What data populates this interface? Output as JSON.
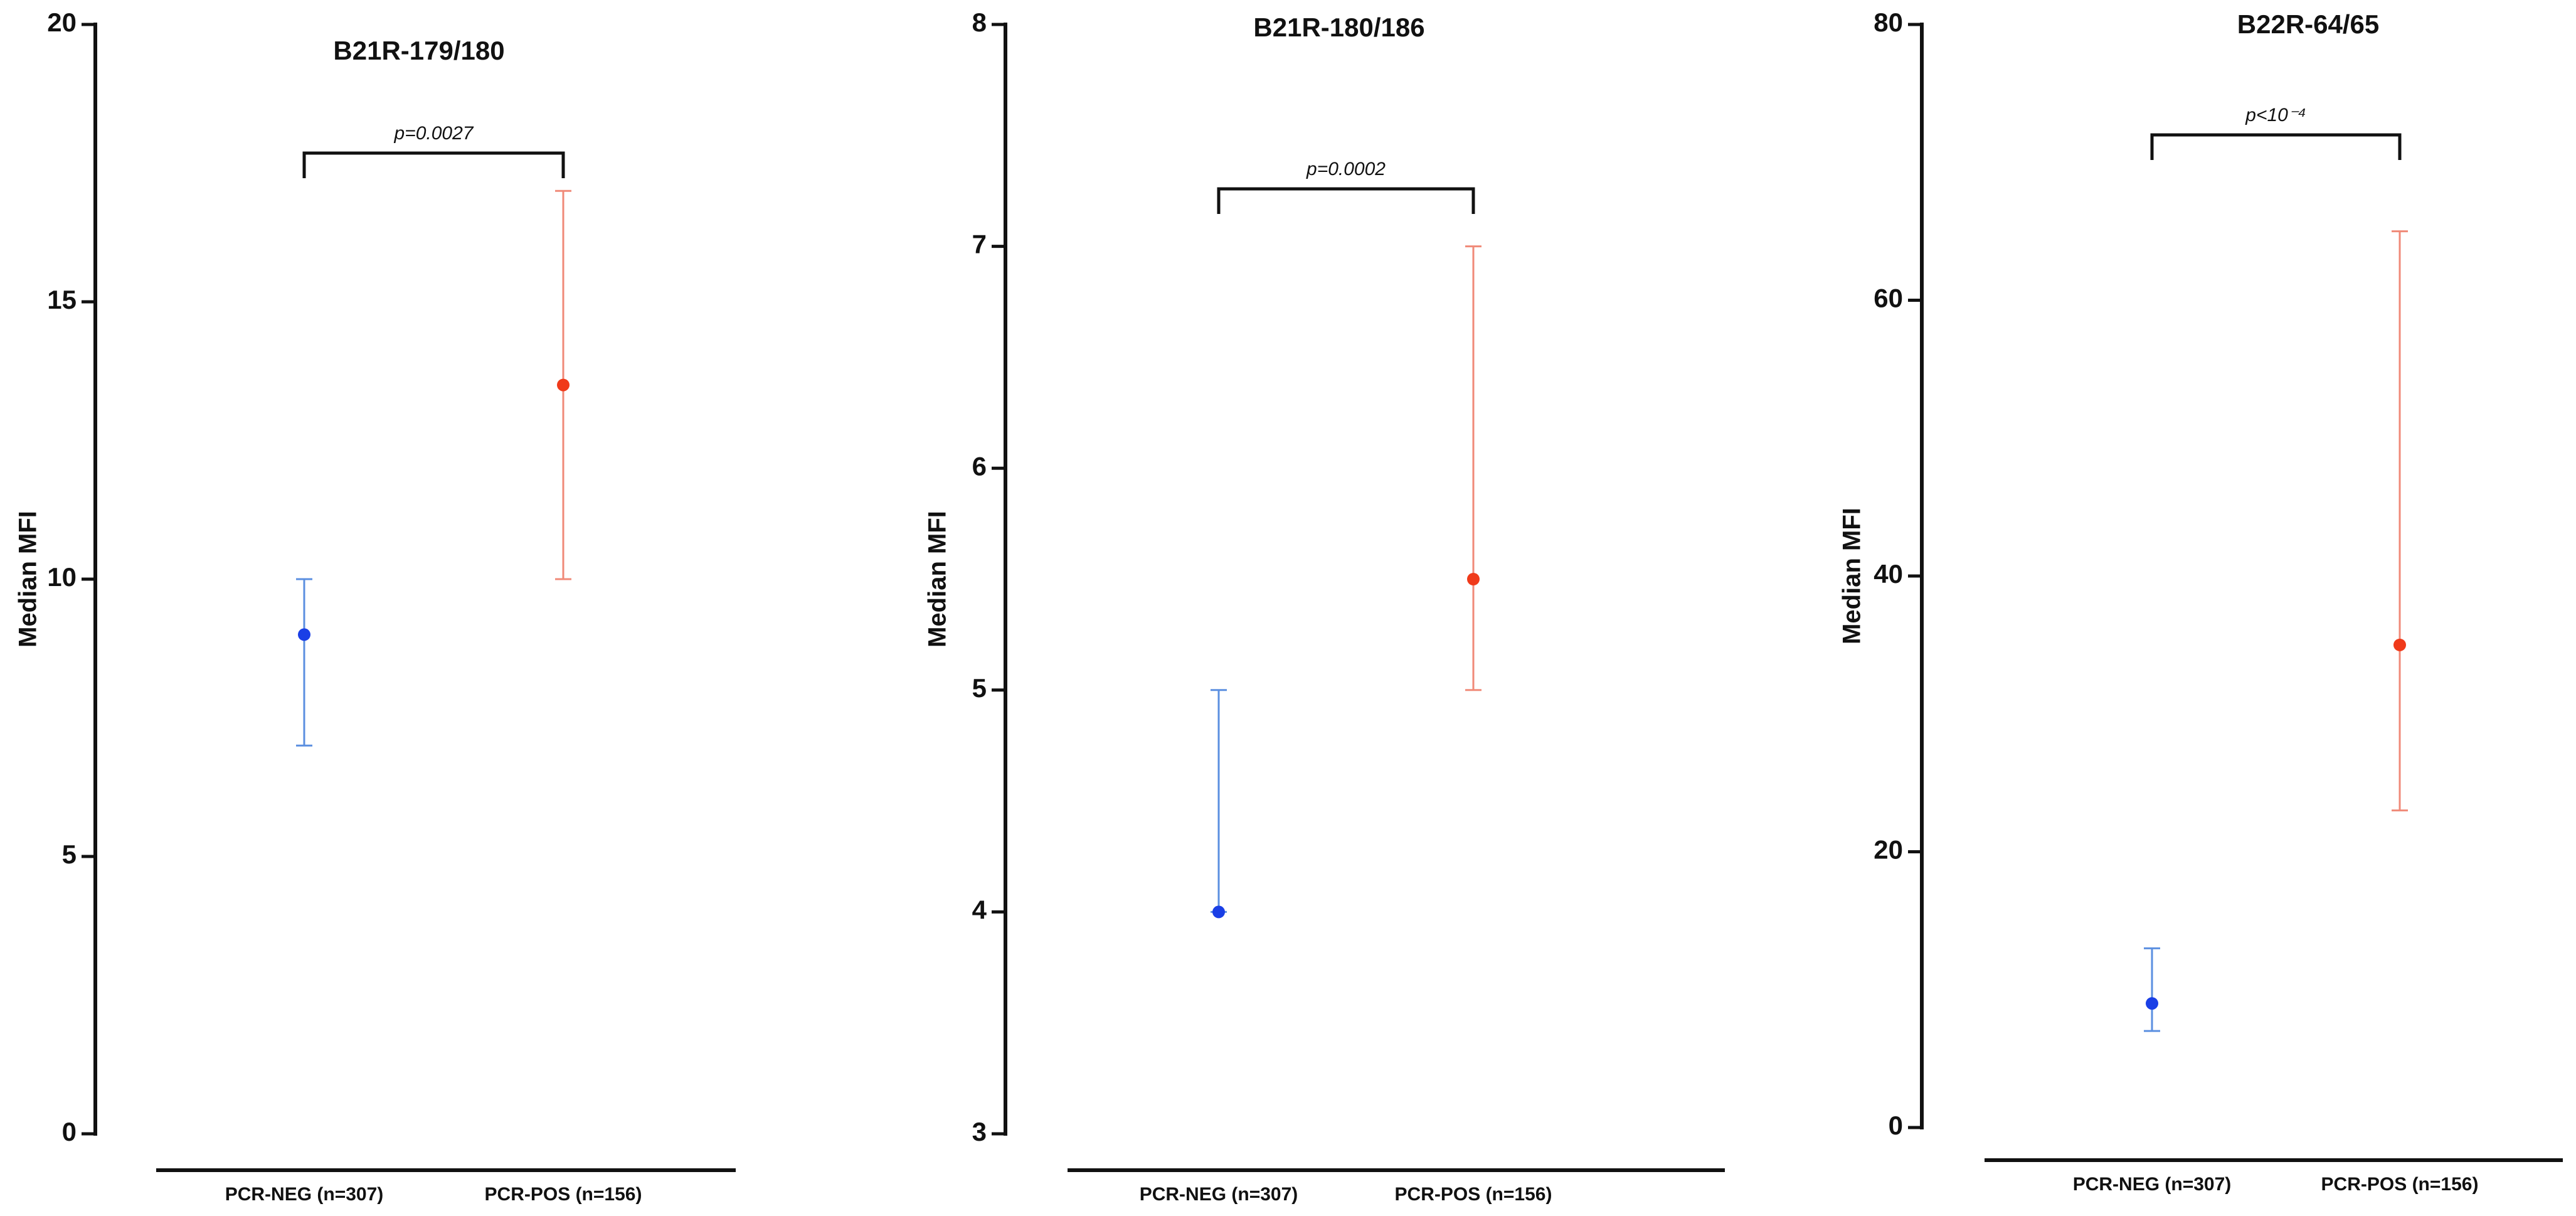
{
  "chart_data": [
    {
      "type": "errorpoint",
      "title": "B21R-179/180",
      "y_label": "Median MFI",
      "categories": [
        "PCR-NEG (n=307)",
        "PCR-POS (n=156)"
      ],
      "values": [
        9,
        13.5
      ],
      "lower": [
        7,
        10
      ],
      "upper": [
        10,
        17
      ],
      "colors": [
        "#1a3fe6",
        "#f03a1a"
      ],
      "error_colors": [
        "#5b8fe0",
        "#f08a78"
      ],
      "ylim": [
        0,
        20
      ],
      "yticks": [
        0,
        5,
        10,
        15,
        20
      ],
      "annotation": "p=0.0027"
    },
    {
      "type": "errorpoint",
      "title": "B21R-180/186",
      "y_label": "Median MFI",
      "categories": [
        "PCR-NEG (n=307)",
        "PCR-POS (n=156)"
      ],
      "values": [
        4,
        5.5
      ],
      "lower": [
        4,
        5
      ],
      "upper": [
        5,
        7
      ],
      "colors": [
        "#1a3fe6",
        "#f03a1a"
      ],
      "error_colors": [
        "#5b8fe0",
        "#f08a78"
      ],
      "ylim": [
        3,
        8
      ],
      "yticks": [
        3,
        4,
        5,
        6,
        7,
        8
      ],
      "annotation": "p=0.0002"
    },
    {
      "type": "errorpoint",
      "title": "B22R-64/65",
      "y_label": "Median MFI",
      "categories": [
        "PCR-NEG (n=307)",
        "PCR-POS (n=156)"
      ],
      "values": [
        9,
        35
      ],
      "lower": [
        7,
        23
      ],
      "upper": [
        13,
        65
      ],
      "colors": [
        "#1a3fe6",
        "#f03a1a"
      ],
      "error_colors": [
        "#5b8fe0",
        "#f08a78"
      ],
      "ylim": [
        0,
        80
      ],
      "yticks": [
        0,
        20,
        40,
        60,
        80
      ],
      "annotation": "p<10⁻⁴"
    }
  ]
}
